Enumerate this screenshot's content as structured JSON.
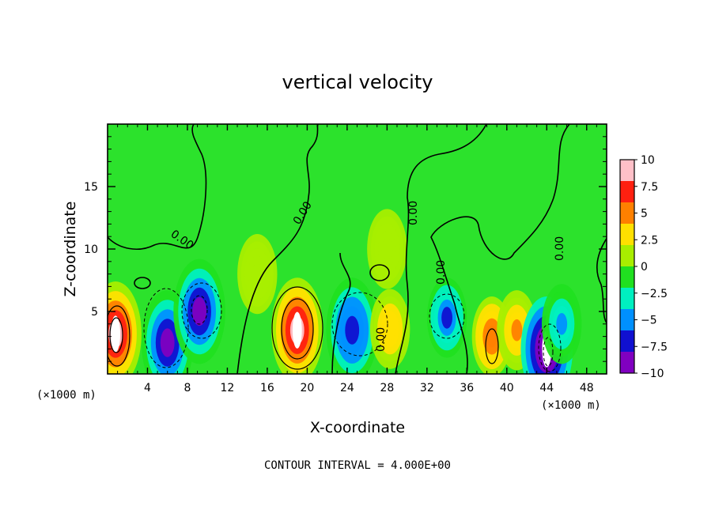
{
  "chart_data": {
    "type": "heatmap",
    "title": "vertical velocity",
    "xlabel": "X-coordinate",
    "ylabel": "Z-coordinate",
    "x_unit_label": "(×1000 m)",
    "y_unit_label": "(×1000 m)",
    "xlim": [
      0,
      50
    ],
    "ylim": [
      0,
      20
    ],
    "x_ticks": [
      "4",
      "8",
      "12",
      "16",
      "20",
      "24",
      "28",
      "32",
      "36",
      "40",
      "44",
      "48"
    ],
    "x_tick_values": [
      4,
      8,
      12,
      16,
      20,
      24,
      28,
      32,
      36,
      40,
      44,
      48
    ],
    "y_ticks": [
      "5",
      "10",
      "15"
    ],
    "y_tick_values": [
      5,
      10,
      15
    ],
    "colorbar": {
      "range": [
        -10,
        10
      ],
      "labels": [
        "10",
        "7.5",
        "5",
        "2.5",
        "0",
        "−2.5",
        "−5",
        "−7.5",
        "−10"
      ],
      "values": [
        10,
        7.5,
        5,
        2.5,
        0,
        -2.5,
        -5,
        -7.5,
        -10
      ],
      "colors": [
        "#ffc0c8",
        "#ff2010",
        "#ff8000",
        "#ffe000",
        "#a8ee00",
        "#20e020",
        "#00f0c0",
        "#0090ff",
        "#1010d0",
        "#8000c0"
      ]
    },
    "contour_interval_text": "CONTOUR INTERVAL = 4.000E+00",
    "contour_labels": [
      "0.00",
      "0.00",
      "0.00",
      "0.00",
      "0.00",
      "0.00",
      "0.00"
    ],
    "background_value": -0.5,
    "features": [
      {
        "x": 0.8,
        "z": 3.2,
        "value": 10
      },
      {
        "x": 6.0,
        "z": 2.5,
        "value": -8.5
      },
      {
        "x": 9.2,
        "z": 5.0,
        "value": -9
      },
      {
        "x": 19.0,
        "z": 3.5,
        "value": 10
      },
      {
        "x": 24.5,
        "z": 3.5,
        "value": -7
      },
      {
        "x": 28.3,
        "z": 3.6,
        "value": 4
      },
      {
        "x": 34.0,
        "z": 4.5,
        "value": -6
      },
      {
        "x": 38.5,
        "z": 3.0,
        "value": 6
      },
      {
        "x": 41.0,
        "z": 3.5,
        "value": 5
      },
      {
        "x": 44.0,
        "z": 2.0,
        "value": -10
      },
      {
        "x": 45.5,
        "z": 4.0,
        "value": -4
      },
      {
        "x": 28.0,
        "z": 10.0,
        "value": 1
      },
      {
        "x": 15.0,
        "z": 8.0,
        "value": 2
      }
    ]
  }
}
